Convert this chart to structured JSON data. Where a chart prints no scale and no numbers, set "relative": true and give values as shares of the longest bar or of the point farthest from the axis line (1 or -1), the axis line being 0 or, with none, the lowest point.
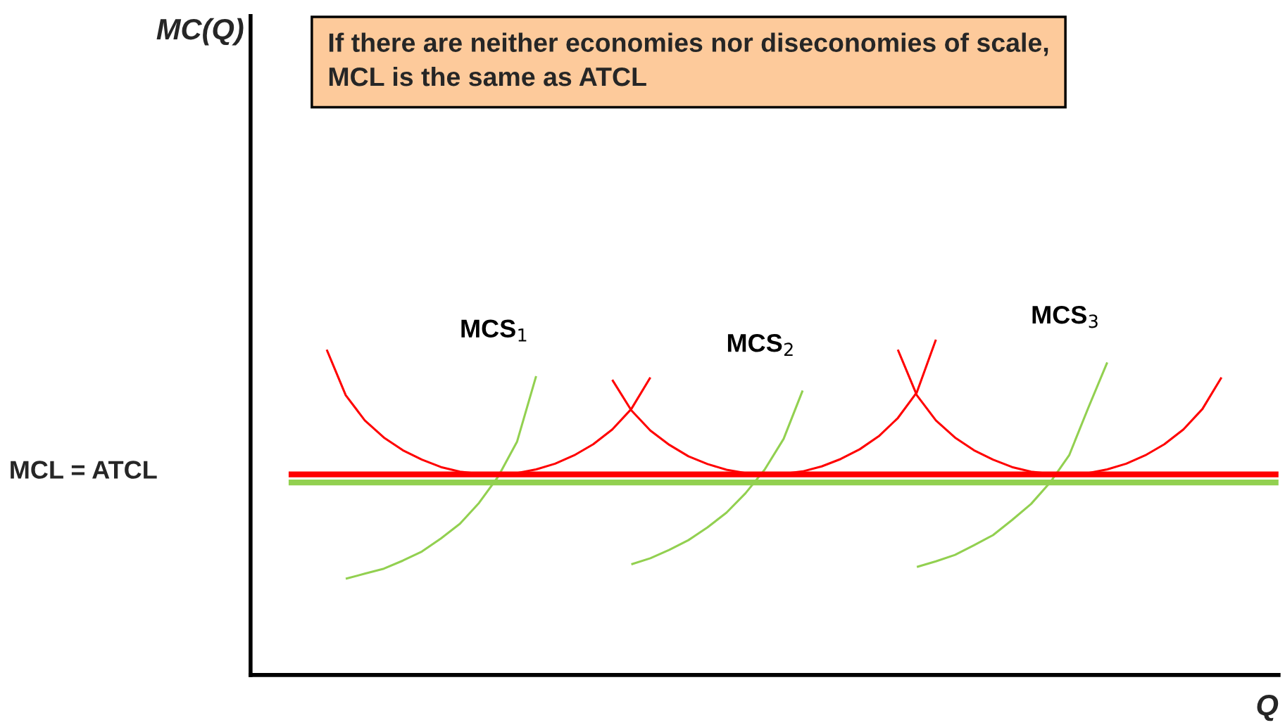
{
  "chart_data": {
    "type": "line",
    "relative": true,
    "xlabel": "Q",
    "legend": false,
    "marker": "none",
    "line_style": "solid",
    "annotations": [
      "If there are neither economies nor diseconomies of scale, MCL is the same as ATCL",
      "MC(Q)",
      "MCL = ATCL"
    ],
    "categories": [
      null,
      null,
      null,
      null,
      null,
      null,
      null,
      null,
      null,
      null,
      null,
      null,
      null,
      null,
      null,
      null,
      null,
      null,
      null,
      null,
      null,
      null,
      null,
      null,
      null,
      null,
      null,
      null,
      null,
      null,
      null,
      null,
      null,
      null,
      null,
      null,
      null,
      null,
      null,
      null,
      null,
      null,
      null,
      null,
      null,
      null,
      null,
      null,
      null,
      null,
      null,
      null,
      null,
      null
    ],
    "series": [
      {
        "color": "#ff0000",
        "values": [
          null,
          null,
          null,
          0.97,
          0.834,
          0.759,
          0.708,
          0.67,
          0.642,
          0.62,
          0.606,
          0.6,
          0.598,
          0.602,
          0.613,
          0.63,
          0.655,
          0.688,
          0.732,
          0.793,
          0.887,
          null,
          null,
          null,
          null,
          null,
          null,
          null,
          null,
          null,
          null,
          null,
          null,
          null,
          null,
          null,
          null,
          null,
          null,
          null,
          null,
          null,
          null,
          null,
          null,
          null,
          null,
          null,
          null,
          null,
          null,
          null,
          null,
          null
        ]
      },
      {
        "color": "#ff0000",
        "values": [
          null,
          null,
          null,
          null,
          null,
          null,
          null,
          null,
          null,
          null,
          null,
          null,
          null,
          null,
          null,
          null,
          null,
          null,
          0.88,
          0.789,
          0.729,
          0.686,
          0.652,
          0.629,
          0.612,
          0.602,
          0.598,
          0.6,
          0.607,
          0.622,
          0.644,
          0.673,
          0.712,
          0.766,
          0.843,
          1.0,
          null,
          null,
          null,
          null,
          null,
          null,
          null,
          null,
          null,
          null,
          null,
          null,
          null,
          null,
          null,
          null,
          null,
          null
        ]
      },
      {
        "color": "#ff0000",
        "values": [
          null,
          null,
          null,
          null,
          null,
          null,
          null,
          null,
          null,
          null,
          null,
          null,
          null,
          null,
          null,
          null,
          null,
          null,
          null,
          null,
          null,
          null,
          null,
          null,
          null,
          null,
          null,
          null,
          null,
          null,
          null,
          null,
          null,
          0.97,
          0.834,
          0.759,
          0.708,
          0.67,
          0.642,
          0.62,
          0.606,
          0.6,
          0.598,
          0.602,
          0.613,
          0.63,
          0.655,
          0.688,
          0.732,
          0.793,
          0.887,
          null,
          null,
          null
        ]
      },
      {
        "name": "MCS$_{1}$",
        "color": "#92d050",
        "values": [
          null,
          null,
          null,
          null,
          0.287,
          0.302,
          0.317,
          0.341,
          0.368,
          0.407,
          0.451,
          0.513,
          0.591,
          0.696,
          0.891,
          null,
          null,
          null,
          null,
          null,
          null,
          null,
          null,
          null,
          null,
          null,
          null,
          null,
          null,
          null,
          null,
          null,
          null,
          null,
          null,
          null,
          null,
          null,
          null,
          null,
          null,
          null,
          null,
          null,
          null,
          null,
          null,
          null,
          null,
          null,
          null,
          null,
          null,
          null
        ]
      },
      {
        "name": "MCS$_{2}$",
        "color": "#92d050",
        "values": [
          null,
          null,
          null,
          null,
          null,
          null,
          null,
          null,
          null,
          null,
          null,
          null,
          null,
          null,
          null,
          null,
          null,
          null,
          null,
          0.33,
          0.348,
          0.373,
          0.402,
          0.44,
          0.484,
          0.542,
          0.612,
          0.704,
          0.848,
          null,
          null,
          null,
          null,
          null,
          null,
          null,
          null,
          null,
          null,
          null,
          null,
          null,
          null,
          null,
          null,
          null,
          null,
          null,
          null,
          null,
          null,
          null,
          null,
          null
        ]
      },
      {
        "name": "MCS$_{3}$",
        "color": "#92d050",
        "values": [
          null,
          null,
          null,
          null,
          null,
          null,
          null,
          null,
          null,
          null,
          null,
          null,
          null,
          null,
          null,
          null,
          null,
          null,
          null,
          null,
          null,
          null,
          null,
          null,
          null,
          null,
          null,
          null,
          null,
          null,
          null,
          null,
          null,
          null,
          0.322,
          0.339,
          0.358,
          0.387,
          0.417,
          0.462,
          0.51,
          0.574,
          0.655,
          0.796,
          0.932,
          null,
          null,
          null,
          null,
          null,
          null,
          null,
          null,
          null
        ]
      },
      {
        "color": "#ff0000",
        "values": [
          null,
          0.598,
          0.598,
          0.598,
          0.598,
          0.598,
          0.598,
          0.598,
          0.598,
          0.598,
          0.598,
          0.598,
          0.598,
          0.598,
          0.598,
          0.598,
          0.598,
          0.598,
          0.598,
          0.598,
          0.598,
          0.598,
          0.598,
          0.598,
          0.598,
          0.598,
          0.598,
          0.598,
          0.598,
          0.598,
          0.598,
          0.598,
          0.598,
          0.598,
          0.598,
          0.598,
          0.598,
          0.598,
          0.598,
          0.598,
          0.598,
          0.598,
          0.598,
          0.598,
          0.598,
          0.598,
          0.598,
          0.598,
          0.598,
          0.598,
          0.598,
          0.598,
          0.598,
          0.598
        ]
      },
      {
        "color": "#92d050",
        "values": [
          null,
          0.574,
          0.574,
          0.574,
          0.574,
          0.574,
          0.574,
          0.574,
          0.574,
          0.574,
          0.574,
          0.574,
          0.574,
          0.574,
          0.574,
          0.574,
          0.574,
          0.574,
          0.574,
          0.574,
          0.574,
          0.574,
          0.574,
          0.574,
          0.574,
          0.574,
          0.574,
          0.574,
          0.574,
          0.574,
          0.574,
          0.574,
          0.574,
          0.574,
          0.574,
          0.574,
          0.574,
          0.574,
          0.574,
          0.574,
          0.574,
          0.574,
          0.574,
          0.574,
          0.574,
          0.574,
          0.574,
          0.574,
          0.574,
          0.574,
          0.574,
          0.574,
          0.574,
          0.574
        ]
      }
    ]
  }
}
